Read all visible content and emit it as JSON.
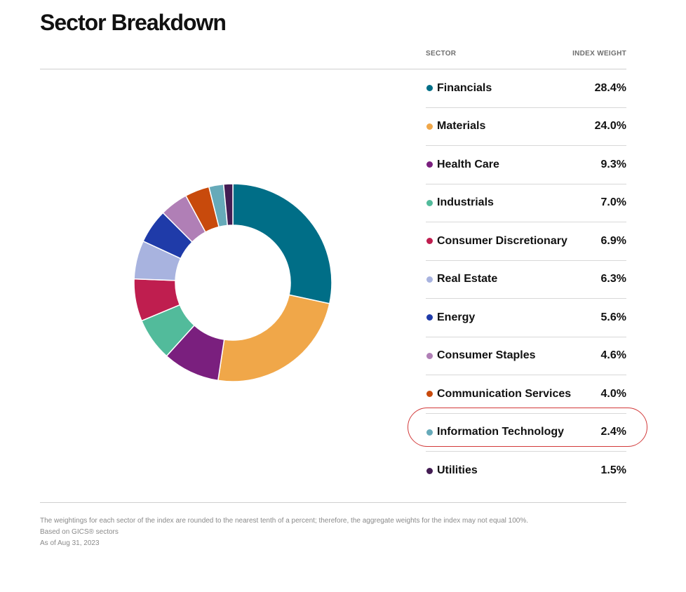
{
  "title": "Sector Breakdown",
  "columns": {
    "sector": "SECTOR",
    "weight": "INDEX WEIGHT"
  },
  "chart_data": {
    "type": "pie",
    "categories": [
      "Financials",
      "Materials",
      "Health Care",
      "Industrials",
      "Consumer Discretionary",
      "Real Estate",
      "Energy",
      "Consumer Staples",
      "Communication Services",
      "Information Technology",
      "Utilities"
    ],
    "values": [
      28.4,
      24.0,
      9.3,
      7.0,
      6.9,
      6.3,
      5.6,
      4.6,
      4.0,
      2.4,
      1.5
    ],
    "labels": [
      "28.4%",
      "24.0%",
      "9.3%",
      "7.0%",
      "6.9%",
      "6.3%",
      "5.6%",
      "4.6%",
      "4.0%",
      "2.4%",
      "1.5%"
    ],
    "colors": [
      "#006e87",
      "#f0a749",
      "#7a1f7e",
      "#52bb9b",
      "#bf1e4f",
      "#a8b3df",
      "#1f3ba9",
      "#b07fb6",
      "#c84a0c",
      "#66aab9",
      "#431c53"
    ],
    "donut": true,
    "legend": "right",
    "highlighted": "Information Technology"
  },
  "notes": [
    "The weightings for each sector of the index are rounded to the nearest tenth of a percent; therefore, the aggregate weights for the index may not equal 100%.",
    "Based on GICS® sectors",
    "As of Aug 31, 2023"
  ]
}
